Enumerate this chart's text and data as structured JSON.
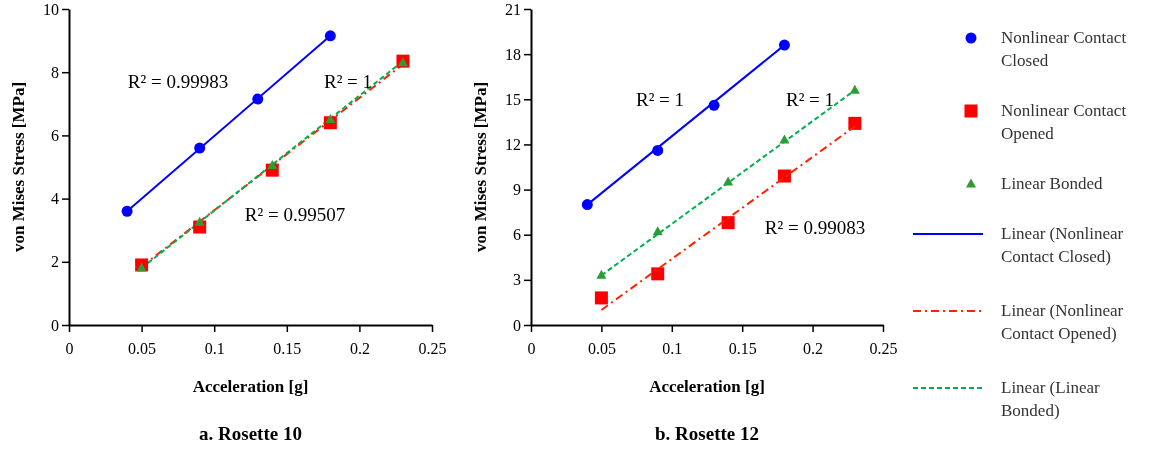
{
  "chart_data": [
    {
      "type": "scatter",
      "title": "a. Rosette 10",
      "xlabel": "Acceleration [g]",
      "ylabel": "von Mises Stress [MPa]",
      "xlim": [
        0,
        0.25
      ],
      "xticks": [
        0,
        0.05,
        0.1,
        0.15,
        0.2,
        0.25
      ],
      "ylim": [
        0,
        10
      ],
      "yticks": [
        0,
        2,
        4,
        6,
        8,
        10
      ],
      "grid": false,
      "legend": false,
      "series": [
        {
          "type": "line",
          "color": "#0000ff",
          "line_style": "solid",
          "marker": "none",
          "x": [
            0.04,
            0.18
          ],
          "values": [
            3.6,
            9.15
          ]
        },
        {
          "type": "line",
          "color": "#ff2200",
          "line_style": "dashdot",
          "marker": "none",
          "x": [
            0.05,
            0.23
          ],
          "values": [
            1.85,
            8.25
          ]
        },
        {
          "type": "line",
          "color": "#00b050",
          "line_style": "dashed",
          "marker": "none",
          "x": [
            0.05,
            0.23
          ],
          "values": [
            1.8,
            8.35
          ]
        },
        {
          "color": "#0000ff",
          "marker": "circle",
          "x": [
            0.04,
            0.09,
            0.13,
            0.18
          ],
          "values": [
            3.6,
            5.6,
            7.15,
            9.15
          ]
        },
        {
          "color": "#ff0000",
          "marker": "square",
          "x": [
            0.05,
            0.09,
            0.14,
            0.18,
            0.23
          ],
          "values": [
            1.9,
            3.1,
            4.9,
            6.4,
            8.35
          ]
        },
        {
          "color": "#339933",
          "marker": "triangle",
          "x": [
            0.05,
            0.09,
            0.14,
            0.18,
            0.23
          ],
          "values": [
            1.8,
            3.25,
            5.05,
            6.5,
            8.3
          ]
        }
      ],
      "annotations": [
        "R² = 0.99983",
        "R² = 1",
        "R² = 0.99507"
      ]
    },
    {
      "type": "scatter",
      "title": "b. Rosette 12",
      "xlabel": "Acceleration [g]",
      "ylabel": "von Mises Stress [MPa]",
      "xlim": [
        0,
        0.25
      ],
      "xticks": [
        0,
        0.05,
        0.1,
        0.15,
        0.2,
        0.25
      ],
      "ylim": [
        0,
        21
      ],
      "yticks": [
        0,
        3,
        6,
        9,
        12,
        15,
        18,
        21
      ],
      "grid": false,
      "legend": "right",
      "series": [
        {
          "name": "Nonlinear Contact Closed",
          "color": "#0000ff",
          "marker": "circle",
          "x": [
            0.04,
            0.09,
            0.13,
            0.18
          ],
          "values": [
            8.0,
            11.6,
            14.6,
            18.6
          ]
        },
        {
          "name": "Nonlinear Contact Opened",
          "color": "#ff0000",
          "marker": "square",
          "x": [
            0.05,
            0.09,
            0.14,
            0.18,
            0.23
          ],
          "values": [
            1.8,
            3.4,
            6.8,
            9.9,
            13.4
          ]
        },
        {
          "name": "Linear Bonded",
          "color": "#339933",
          "marker": "triangle",
          "x": [
            0.05,
            0.09,
            0.14,
            0.18,
            0.23
          ],
          "values": [
            3.3,
            6.2,
            9.5,
            12.3,
            15.6
          ]
        },
        {
          "name": "Linear (Nonlinear Contact Closed)",
          "type": "line",
          "color": "#0000ff",
          "line_style": "solid",
          "marker": "none",
          "x": [
            0.04,
            0.18
          ],
          "values": [
            8.0,
            18.6
          ]
        },
        {
          "name": "Linear (Nonlinear Contact Opened)",
          "type": "line",
          "color": "#ff2200",
          "line_style": "dashdot",
          "marker": "none",
          "x": [
            0.05,
            0.23
          ],
          "values": [
            1.0,
            13.2
          ]
        },
        {
          "name": "Linear (Linear Bonded)",
          "type": "line",
          "color": "#00b050",
          "line_style": "dashed",
          "marker": "none",
          "x": [
            0.05,
            0.23
          ],
          "values": [
            3.3,
            15.6
          ]
        }
      ],
      "annotations": [
        "R² = 1",
        "R² = 1",
        "R² = 0.99083"
      ]
    }
  ]
}
